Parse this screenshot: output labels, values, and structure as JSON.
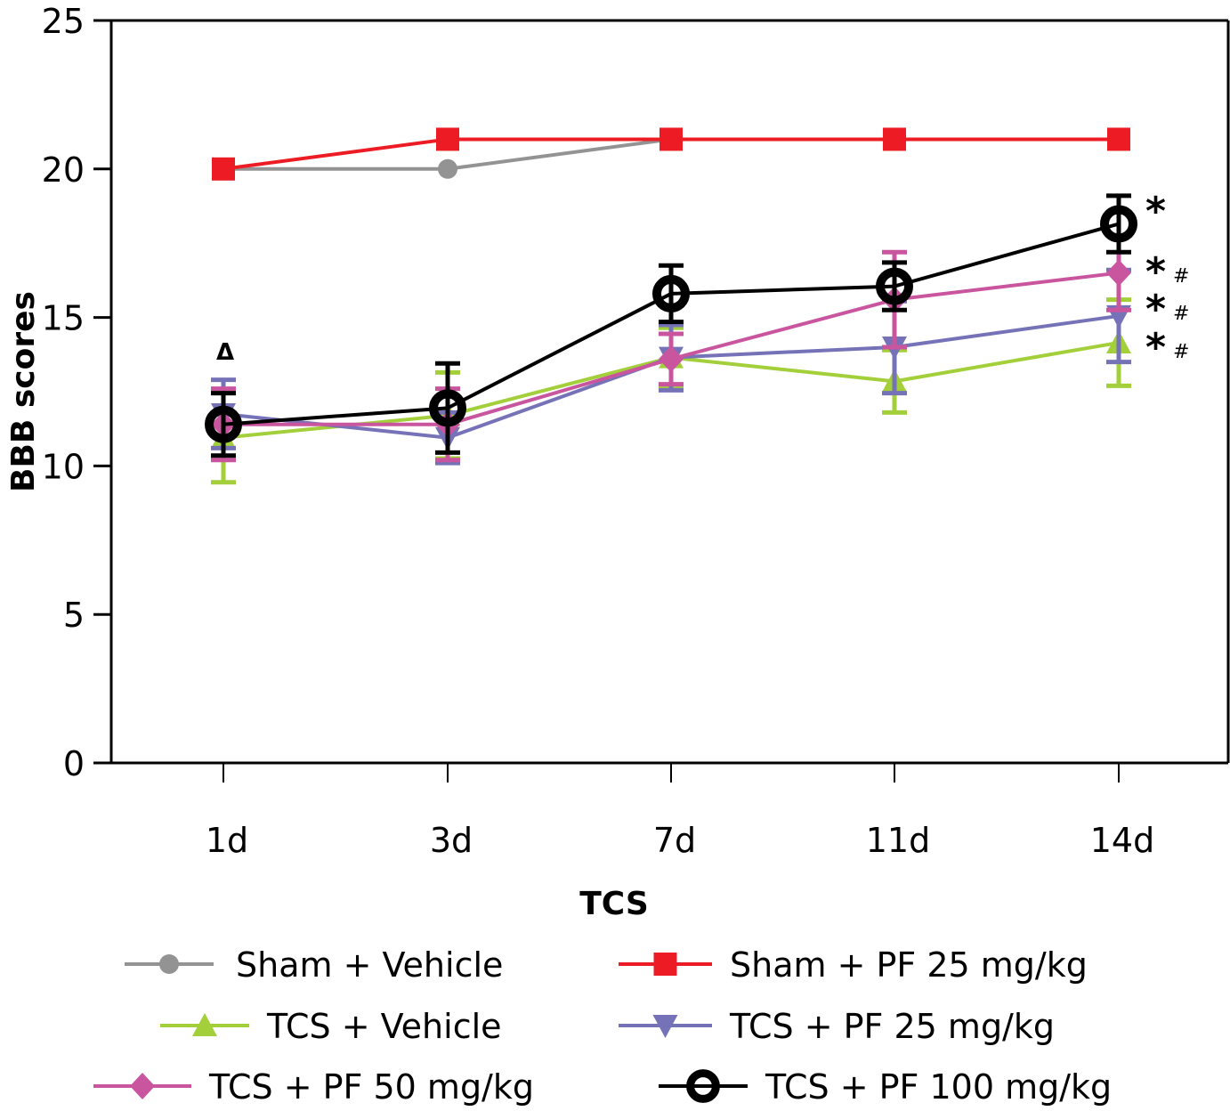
{
  "chart_data": {
    "type": "line",
    "title": "",
    "xlabel": "TCS",
    "ylabel": "BBB scores",
    "categories": [
      "1d",
      "3d",
      "7d",
      "11d",
      "14d"
    ],
    "ylim": [
      0,
      25
    ],
    "yticks": [
      0,
      5,
      10,
      15,
      20,
      25
    ],
    "grid": false,
    "legend_position": "bottom",
    "series": [
      {
        "name": "Sham + Vehicle",
        "color": "#939393",
        "marker": "circle",
        "values": [
          20,
          20,
          21,
          21,
          21
        ],
        "errors": [
          0,
          0,
          0,
          0,
          0
        ]
      },
      {
        "name": "Sham + PF 25 mg/kg",
        "color": "#ed1c24",
        "marker": "square",
        "values": [
          20,
          21,
          21,
          21,
          21
        ],
        "errors": [
          0,
          0,
          0,
          0,
          0
        ]
      },
      {
        "name": "TCS + Vehicle",
        "color": "#a3cf3a",
        "marker": "triangle-up",
        "values": [
          10.95,
          11.7,
          13.65,
          12.85,
          14.15
        ],
        "errors": [
          1.5,
          1.45,
          1.0,
          1.05,
          1.45
        ]
      },
      {
        "name": "TCS + PF 25 mg/kg",
        "color": "#7672b8",
        "marker": "triangle-down",
        "values": [
          11.75,
          10.95,
          13.65,
          14.0,
          15.05
        ],
        "errors": [
          1.15,
          0.85,
          1.1,
          1.55,
          1.55
        ]
      },
      {
        "name": "TCS + PF 50 mg/kg",
        "color": "#c9559f",
        "marker": "diamond",
        "values": [
          11.4,
          11.4,
          13.6,
          15.6,
          16.5
        ],
        "errors": [
          1.2,
          1.2,
          0.85,
          1.6,
          1.25
        ]
      },
      {
        "name": "TCS + PF 100 mg/kg",
        "color": "#000000",
        "marker": "open-circle",
        "values": [
          11.4,
          11.95,
          15.8,
          16.05,
          18.15
        ],
        "errors": [
          1.05,
          1.5,
          0.95,
          0.8,
          0.95
        ]
      }
    ],
    "annotations": [
      {
        "text": "Δ",
        "category": "1d",
        "series": "TCS + PF 25 mg/kg",
        "note": "above 1d group"
      },
      {
        "text": "*",
        "category": "14d",
        "series": "TCS + PF 100 mg/kg"
      },
      {
        "text": "* #",
        "category": "14d",
        "series": "TCS + PF 50 mg/kg"
      },
      {
        "text": "* #",
        "category": "14d",
        "series": "TCS + PF 25 mg/kg"
      },
      {
        "text": "* #",
        "category": "14d",
        "series": "TCS + Vehicle"
      }
    ]
  }
}
